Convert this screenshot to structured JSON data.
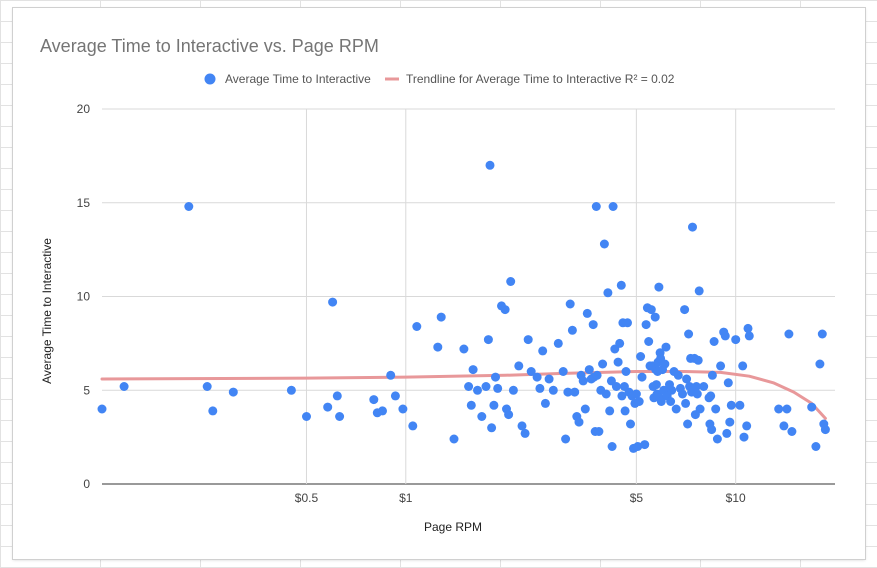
{
  "chart_data": {
    "type": "scatter",
    "title": "Average Time to Interactive vs. Page RPM",
    "xlabel": "Page RPM",
    "ylabel": "Average Time to Interactive",
    "x_scale": "log",
    "xlim": [
      0.12,
      20
    ],
    "ylim": [
      0,
      20
    ],
    "y_ticks": [
      0,
      5,
      10,
      15,
      20
    ],
    "y_tick_labels": [
      "0",
      "5",
      "10",
      "15",
      "20"
    ],
    "x_ticks": [
      0.5,
      1,
      5,
      10
    ],
    "x_tick_labels": [
      "$0.5",
      "$1",
      "$5",
      "$10"
    ],
    "grid": true,
    "legend_position": "top",
    "series": [
      {
        "name": "Average Time to Interactive",
        "kind": "points",
        "color": "#4285f4",
        "points": [
          [
            0.12,
            4.0
          ],
          [
            0.14,
            5.2
          ],
          [
            0.22,
            14.8
          ],
          [
            0.25,
            5.2
          ],
          [
            0.26,
            3.9
          ],
          [
            0.3,
            4.9
          ],
          [
            0.45,
            5.0
          ],
          [
            0.5,
            3.6
          ],
          [
            0.58,
            4.1
          ],
          [
            0.6,
            9.7
          ],
          [
            0.62,
            4.7
          ],
          [
            0.63,
            3.6
          ],
          [
            0.8,
            4.5
          ],
          [
            0.82,
            3.8
          ],
          [
            0.85,
            3.9
          ],
          [
            0.9,
            5.8
          ],
          [
            0.93,
            4.7
          ],
          [
            0.98,
            4.0
          ],
          [
            1.05,
            3.1
          ],
          [
            1.08,
            8.4
          ],
          [
            1.25,
            7.3
          ],
          [
            1.28,
            8.9
          ],
          [
            1.4,
            2.4
          ],
          [
            1.5,
            7.2
          ],
          [
            1.55,
            5.2
          ],
          [
            1.58,
            4.2
          ],
          [
            1.6,
            6.1
          ],
          [
            1.65,
            5.0
          ],
          [
            1.7,
            3.6
          ],
          [
            1.75,
            5.2
          ],
          [
            1.78,
            7.7
          ],
          [
            1.8,
            17.0
          ],
          [
            1.82,
            3.0
          ],
          [
            1.85,
            4.2
          ],
          [
            1.87,
            5.7
          ],
          [
            1.9,
            5.1
          ],
          [
            1.95,
            9.5
          ],
          [
            2.0,
            9.3
          ],
          [
            2.02,
            4.0
          ],
          [
            2.05,
            3.7
          ],
          [
            2.08,
            10.8
          ],
          [
            2.12,
            5.0
          ],
          [
            2.2,
            6.3
          ],
          [
            2.25,
            3.1
          ],
          [
            2.3,
            2.7
          ],
          [
            2.35,
            7.7
          ],
          [
            2.4,
            6.0
          ],
          [
            2.5,
            5.7
          ],
          [
            2.55,
            5.1
          ],
          [
            2.6,
            7.1
          ],
          [
            2.65,
            4.3
          ],
          [
            2.72,
            5.6
          ],
          [
            2.8,
            5.0
          ],
          [
            2.9,
            7.5
          ],
          [
            3.0,
            6.0
          ],
          [
            3.05,
            2.4
          ],
          [
            3.1,
            4.9
          ],
          [
            3.15,
            9.6
          ],
          [
            3.2,
            8.2
          ],
          [
            3.25,
            4.9
          ],
          [
            3.3,
            3.6
          ],
          [
            3.35,
            3.3
          ],
          [
            3.4,
            5.8
          ],
          [
            3.45,
            5.5
          ],
          [
            3.5,
            4.0
          ],
          [
            3.55,
            9.1
          ],
          [
            3.6,
            6.1
          ],
          [
            3.65,
            5.6
          ],
          [
            3.7,
            8.5
          ],
          [
            3.72,
            5.7
          ],
          [
            3.75,
            2.8
          ],
          [
            3.78,
            14.8
          ],
          [
            3.8,
            5.8
          ],
          [
            3.85,
            2.8
          ],
          [
            3.9,
            5.0
          ],
          [
            3.95,
            6.4
          ],
          [
            4.0,
            12.8
          ],
          [
            4.05,
            4.8
          ],
          [
            4.1,
            10.2
          ],
          [
            4.15,
            3.9
          ],
          [
            4.2,
            5.5
          ],
          [
            4.22,
            2.0
          ],
          [
            4.25,
            14.8
          ],
          [
            4.3,
            7.2
          ],
          [
            4.35,
            5.2
          ],
          [
            4.4,
            6.5
          ],
          [
            4.45,
            7.5
          ],
          [
            4.5,
            10.6
          ],
          [
            4.52,
            4.7
          ],
          [
            4.55,
            8.6
          ],
          [
            4.6,
            5.2
          ],
          [
            4.62,
            3.9
          ],
          [
            4.65,
            6.0
          ],
          [
            4.7,
            8.6
          ],
          [
            4.75,
            4.9
          ],
          [
            4.8,
            3.2
          ],
          [
            4.85,
            4.7
          ],
          [
            4.9,
            1.9
          ],
          [
            4.95,
            4.3
          ],
          [
            5.0,
            4.8
          ],
          [
            5.05,
            2.0
          ],
          [
            5.1,
            4.4
          ],
          [
            5.15,
            6.8
          ],
          [
            5.2,
            5.7
          ],
          [
            5.3,
            2.1
          ],
          [
            5.35,
            8.5
          ],
          [
            5.4,
            9.4
          ],
          [
            5.45,
            7.6
          ],
          [
            5.5,
            6.3
          ],
          [
            5.55,
            9.3
          ],
          [
            5.6,
            6.3
          ],
          [
            5.62,
            5.2
          ],
          [
            5.65,
            4.6
          ],
          [
            5.7,
            8.9
          ],
          [
            5.72,
            6.1
          ],
          [
            5.75,
            5.3
          ],
          [
            5.78,
            4.8
          ],
          [
            5.8,
            6.0
          ],
          [
            5.82,
            6.5
          ],
          [
            5.85,
            10.5
          ],
          [
            5.88,
            4.6
          ],
          [
            5.9,
            7.0
          ],
          [
            5.92,
            6.7
          ],
          [
            5.95,
            4.4
          ],
          [
            6.0,
            6.1
          ],
          [
            6.05,
            5.0
          ],
          [
            6.1,
            6.4
          ],
          [
            6.15,
            7.3
          ],
          [
            6.2,
            4.7
          ],
          [
            6.3,
            5.3
          ],
          [
            6.35,
            4.4
          ],
          [
            6.4,
            5.0
          ],
          [
            6.5,
            6.0
          ],
          [
            6.6,
            4.0
          ],
          [
            6.7,
            5.8
          ],
          [
            6.8,
            5.1
          ],
          [
            6.9,
            4.8
          ],
          [
            7.0,
            9.3
          ],
          [
            7.05,
            4.3
          ],
          [
            7.1,
            5.6
          ],
          [
            7.15,
            3.2
          ],
          [
            7.2,
            8.0
          ],
          [
            7.25,
            5.2
          ],
          [
            7.3,
            6.7
          ],
          [
            7.35,
            4.9
          ],
          [
            7.4,
            13.7
          ],
          [
            7.45,
            5.1
          ],
          [
            7.5,
            6.7
          ],
          [
            7.55,
            3.7
          ],
          [
            7.6,
            5.2
          ],
          [
            7.65,
            4.8
          ],
          [
            7.7,
            6.6
          ],
          [
            7.75,
            10.3
          ],
          [
            7.8,
            4.0
          ],
          [
            8.0,
            5.2
          ],
          [
            8.3,
            4.6
          ],
          [
            8.35,
            3.2
          ],
          [
            8.4,
            4.7
          ],
          [
            8.45,
            2.9
          ],
          [
            8.5,
            5.8
          ],
          [
            8.6,
            7.6
          ],
          [
            8.7,
            4.0
          ],
          [
            8.8,
            2.4
          ],
          [
            9.0,
            6.3
          ],
          [
            9.2,
            8.1
          ],
          [
            9.3,
            7.9
          ],
          [
            9.4,
            2.7
          ],
          [
            9.5,
            5.4
          ],
          [
            9.6,
            3.3
          ],
          [
            9.7,
            4.2
          ],
          [
            10.0,
            7.7
          ],
          [
            10.3,
            4.2
          ],
          [
            10.5,
            6.3
          ],
          [
            10.6,
            2.5
          ],
          [
            10.8,
            3.1
          ],
          [
            10.9,
            8.3
          ],
          [
            11.0,
            7.9
          ],
          [
            13.5,
            4.0
          ],
          [
            14.0,
            3.1
          ],
          [
            14.3,
            4.0
          ],
          [
            14.5,
            8.0
          ],
          [
            14.8,
            2.8
          ],
          [
            17.0,
            4.1
          ],
          [
            17.5,
            2.0
          ],
          [
            18.0,
            6.4
          ],
          [
            18.3,
            8.0
          ],
          [
            18.5,
            3.2
          ],
          [
            18.7,
            2.9
          ]
        ]
      },
      {
        "name": "Trendline for Average Time to Interactive R² = 0.02",
        "kind": "line",
        "color": "#e8989a",
        "points": [
          [
            0.12,
            5.6
          ],
          [
            0.5,
            5.65
          ],
          [
            1,
            5.7
          ],
          [
            2,
            5.8
          ],
          [
            3,
            5.9
          ],
          [
            5,
            6.0
          ],
          [
            7,
            6.0
          ],
          [
            9,
            5.95
          ],
          [
            11,
            5.75
          ],
          [
            13,
            5.4
          ],
          [
            15,
            4.9
          ],
          [
            17,
            4.3
          ],
          [
            18.7,
            3.5
          ]
        ]
      }
    ]
  }
}
